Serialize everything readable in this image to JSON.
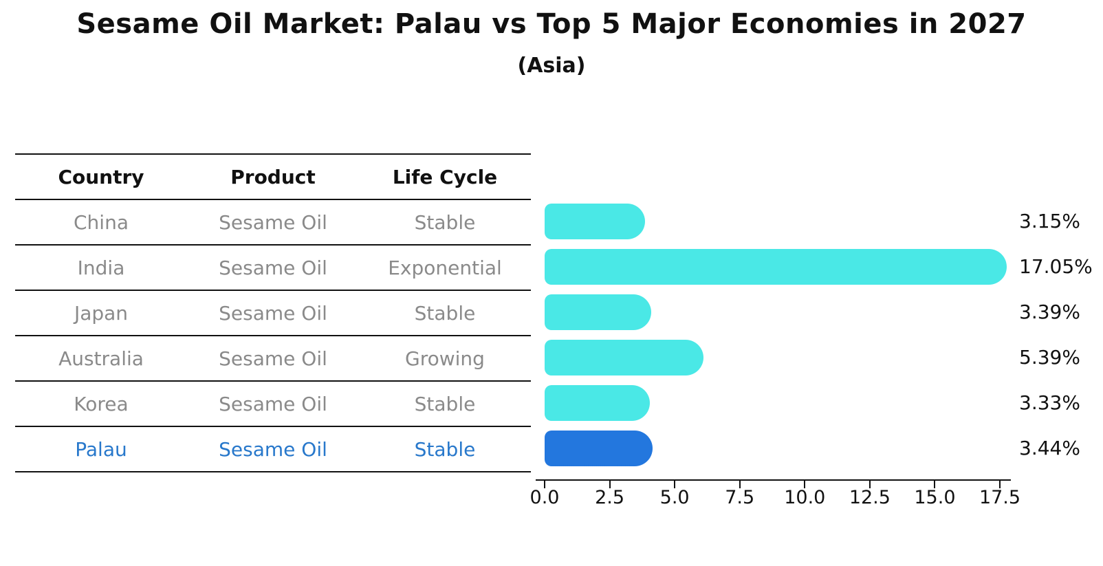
{
  "chart_data": {
    "type": "bar",
    "orientation": "horizontal",
    "title": "Sesame Oil Market: Palau vs Top 5 Major Economies in 2027",
    "subtitle": "(Asia)",
    "categories": [
      "China",
      "India",
      "Japan",
      "Australia",
      "Korea",
      "Palau"
    ],
    "values": [
      3.15,
      17.05,
      3.39,
      5.39,
      3.33,
      3.44
    ],
    "value_labels": [
      "3.15%",
      "17.05%",
      "3.39%",
      "5.39%",
      "3.33%",
      "3.44%"
    ],
    "highlight_index": 5,
    "xticks": [
      0.0,
      2.5,
      5.0,
      7.5,
      10.0,
      12.5,
      15.0,
      17.5
    ],
    "xtick_labels": [
      "0.0",
      "2.5",
      "5.0",
      "7.5",
      "10.0",
      "12.5",
      "15.0",
      "17.5"
    ],
    "xlim": [
      -0.35,
      17.9
    ],
    "grid": false,
    "legend": false,
    "bar_color": "#4ae8e6",
    "highlight_bar_color": "#2377de",
    "label_color": "#111111"
  },
  "table": {
    "headers": {
      "country": "Country",
      "product": "Product",
      "life_cycle": "Life Cycle"
    },
    "rows": [
      {
        "country": "China",
        "product": "Sesame Oil",
        "life_cycle": "Stable"
      },
      {
        "country": "India",
        "product": "Sesame Oil",
        "life_cycle": "Exponential"
      },
      {
        "country": "Japan",
        "product": "Sesame Oil",
        "life_cycle": "Stable"
      },
      {
        "country": "Australia",
        "product": "Sesame Oil",
        "life_cycle": "Growing"
      },
      {
        "country": "Korea",
        "product": "Sesame Oil",
        "life_cycle": "Stable"
      },
      {
        "country": "Palau",
        "product": "Sesame Oil",
        "life_cycle": "Stable"
      }
    ],
    "highlight_row_color": "#2878cb",
    "row_text_color": "#8a8a8a"
  }
}
